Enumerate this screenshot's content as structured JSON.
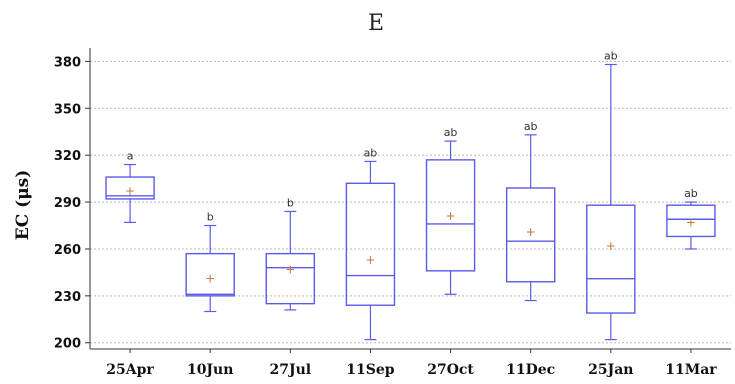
{
  "chart_data": {
    "type": "box",
    "title": "E",
    "xlabel": "",
    "ylabel": "EC (μs)",
    "ylim": [
      196,
      386
    ],
    "yticks": [
      200,
      230,
      260,
      290,
      320,
      350,
      380
    ],
    "grid": true,
    "categories": [
      "25Apr",
      "10Jun",
      "27Jul",
      "11Sep",
      "27Oct",
      "11Dec",
      "25Jan",
      "11Mar"
    ],
    "boxes": [
      {
        "whisker_low": 277,
        "q1": 292,
        "median": 294,
        "q3": 306,
        "whisker_high": 314,
        "mean": 297,
        "group": "a"
      },
      {
        "whisker_low": 220,
        "q1": 230,
        "median": 231,
        "q3": 257,
        "whisker_high": 275,
        "mean": 241,
        "group": "b"
      },
      {
        "whisker_low": 221,
        "q1": 225,
        "median": 248,
        "q3": 257,
        "whisker_high": 284,
        "mean": 247,
        "group": "b"
      },
      {
        "whisker_low": 202,
        "q1": 224,
        "median": 243,
        "q3": 302,
        "whisker_high": 316,
        "mean": 253,
        "group": "ab"
      },
      {
        "whisker_low": 231,
        "q1": 246,
        "median": 276,
        "q3": 317,
        "whisker_high": 329,
        "mean": 281,
        "group": "ab"
      },
      {
        "whisker_low": 227,
        "q1": 239,
        "median": 265,
        "q3": 299,
        "whisker_high": 333,
        "mean": 271,
        "group": "ab"
      },
      {
        "whisker_low": 202,
        "q1": 219,
        "median": 241,
        "q3": 288,
        "whisker_high": 378,
        "mean": 262,
        "group": "ab"
      },
      {
        "whisker_low": 260,
        "q1": 268,
        "median": 279,
        "q3": 288,
        "whisker_high": 290,
        "mean": 277,
        "group": "ab"
      }
    ],
    "colors": {
      "box": "#5b5bea",
      "mean": "#c8743a",
      "grid": "#b8b8b8",
      "axis": "#333333"
    }
  }
}
